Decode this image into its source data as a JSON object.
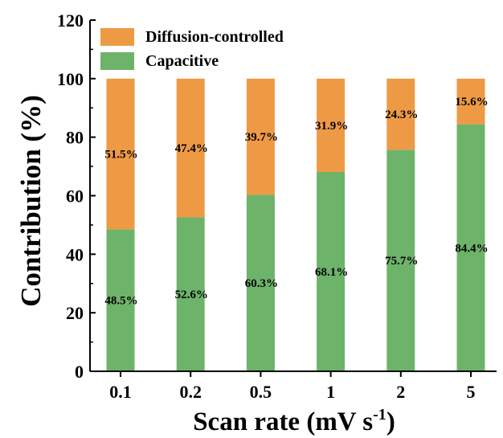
{
  "chart_data": {
    "type": "bar",
    "stacked": true,
    "xlabel": "Scan rate (mV s",
    "xlabel_sup": "-1",
    "xlabel_close": ")",
    "ylabel": "Contribution (%)",
    "ylim": [
      0,
      120
    ],
    "yticks": [
      0,
      20,
      40,
      60,
      80,
      100,
      120
    ],
    "categories": [
      "0.1",
      "0.2",
      "0.5",
      "1",
      "2",
      "5"
    ],
    "series": [
      {
        "name": "Capacitive",
        "color": "#6db36a",
        "values": [
          48.5,
          52.6,
          60.3,
          68.1,
          75.7,
          84.4
        ],
        "labels": [
          "48.5%",
          "52.6%",
          "60.3%",
          "68.1%",
          "75.7%",
          "84.4%"
        ]
      },
      {
        "name": "Diffusion-controlled",
        "color": "#ee9a45",
        "values": [
          51.5,
          47.4,
          39.7,
          31.9,
          24.3,
          15.6
        ],
        "labels": [
          "51.5%",
          "47.4%",
          "39.7%",
          "31.9%",
          "24.3%",
          "15.6%"
        ]
      }
    ],
    "legend": {
      "position": "top-left",
      "order": [
        "Diffusion-controlled",
        "Capacitive"
      ]
    },
    "grid": false
  }
}
